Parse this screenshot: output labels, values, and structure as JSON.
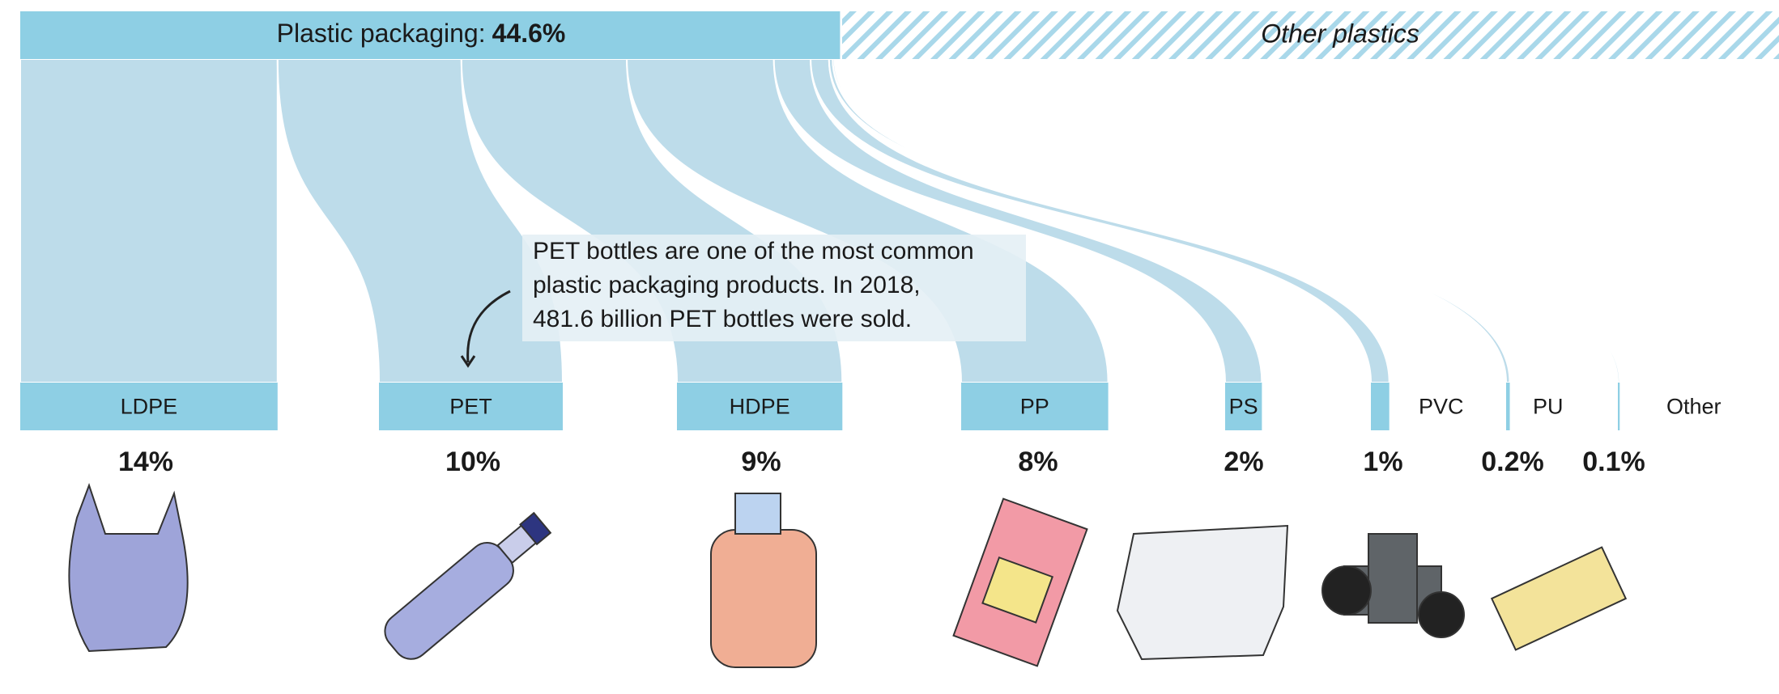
{
  "chart_data": {
    "type": "flow",
    "title": "Plastic packaging:",
    "total": 44.6,
    "total_label": "44.6%",
    "other_label": "Other plastics",
    "categories": [
      "LDPE",
      "PET",
      "HDPE",
      "PP",
      "PS",
      "PVC",
      "PU",
      "Other"
    ],
    "values": [
      14,
      10,
      9,
      8,
      2,
      1,
      0.2,
      0.1
    ],
    "value_labels": [
      "14%",
      "10%",
      "9%",
      "8%",
      "2%",
      "1%",
      "0.2%",
      "0.1%"
    ],
    "color": "#8ecfe4",
    "flow_color": "#bddcea",
    "annotation": [
      "PET bottles are one of the most common",
      "plastic packaging products. In 2018,",
      "481.6 billion PET bottles were sold."
    ]
  }
}
